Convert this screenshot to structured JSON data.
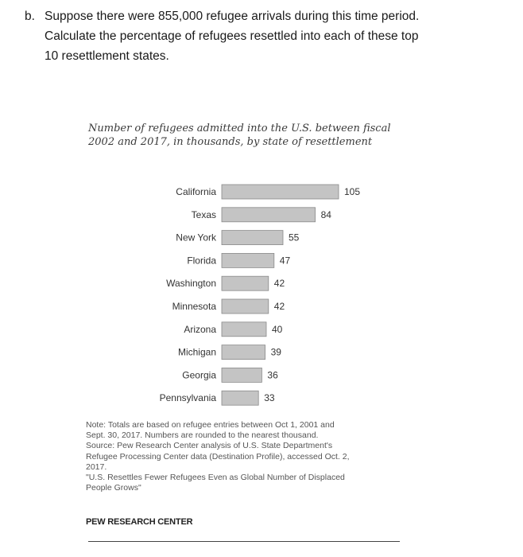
{
  "question": {
    "label": "b.",
    "line1": "Suppose there were 855,000 refugee arrivals during this time period.",
    "line2": "Calculate the percentage of refugees resettled into each of these top",
    "line3": "10 resettlement states."
  },
  "figure": {
    "title_line1": "Number of refugees admitted into the U.S. between fiscal",
    "title_line2": "2002 and 2017, in thousands, by state of resettlement",
    "note_line1": "Note: Totals are based on refugee entries between Oct 1, 2001 and",
    "note_line2": "Sept. 30, 2017. Numbers are rounded to the nearest thousand.",
    "source_line1": "Source: Pew Research Center analysis of U.S. State Department's",
    "source_line2": "Refugee Processing Center data (Destination Profile), accessed Oct. 2,",
    "source_line3": "2017.",
    "ref_line1": "\"U.S. Resettles Fewer Refugees Even as Global Number of Displaced",
    "ref_line2": "People Grows\"",
    "brand": "PEW RESEARCH CENTER"
  },
  "chart_data": {
    "type": "bar",
    "orientation": "horizontal",
    "title": "Number of refugees admitted into the U.S. between fiscal 2002 and 2017, in thousands, by state of resettlement",
    "categories": [
      "California",
      "Texas",
      "New York",
      "Florida",
      "Washington",
      "Minnesota",
      "Arizona",
      "Michigan",
      "Georgia",
      "Pennsylvania"
    ],
    "values": [
      105,
      84,
      55,
      47,
      42,
      42,
      40,
      39,
      36,
      33
    ],
    "xlim": [
      0,
      105
    ],
    "grid": false,
    "legend": "none",
    "bar_color": "#c4c4c4",
    "bar_stroke": "#8a8a8a"
  }
}
